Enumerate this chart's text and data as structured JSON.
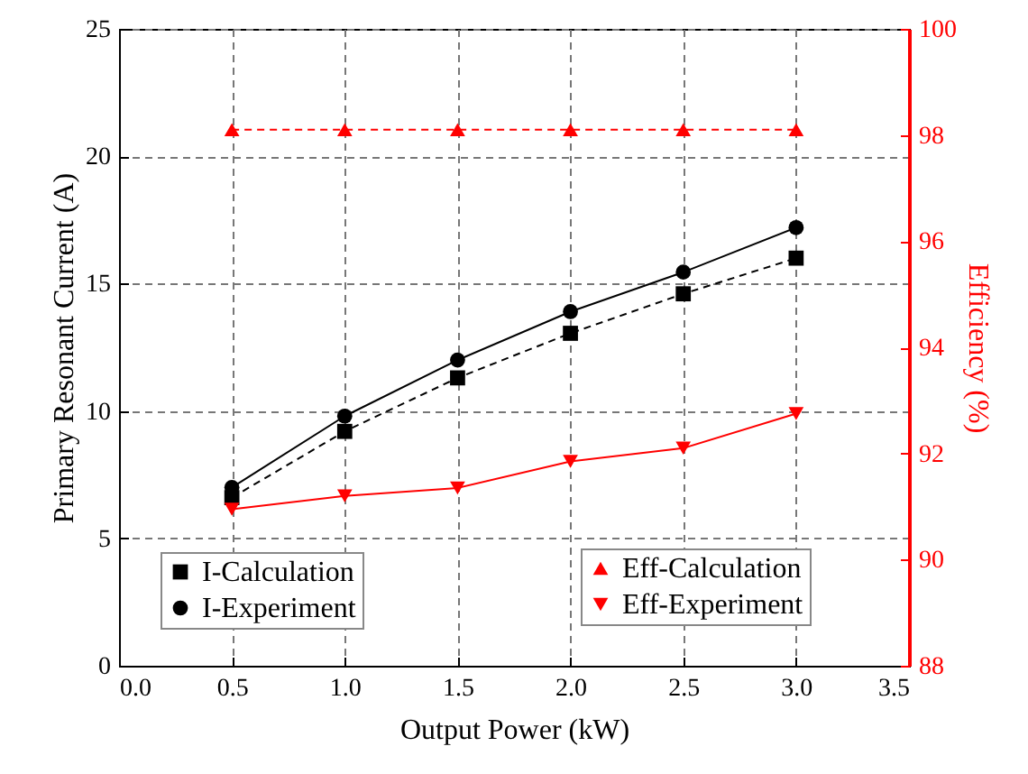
{
  "chart_data": {
    "type": "line",
    "xlabel": "Output Power (kW)",
    "ylabel": "Primary Resonant Current (A)",
    "y2label": "Efficiency (%)",
    "x": [
      0.5,
      1.0,
      1.5,
      2.0,
      2.5,
      3.0
    ],
    "xlim": [
      0,
      3.5
    ],
    "xticks": [
      {
        "value": 0,
        "label": "0.0"
      },
      0.5,
      {
        "value": 1,
        "label": "1.0"
      },
      1.5,
      {
        "value": 2,
        "label": "2.0"
      },
      2.5,
      {
        "value": 3,
        "label": "3.0"
      },
      3.5
    ],
    "ylim": [
      0,
      25
    ],
    "yticks": [
      0,
      5,
      10,
      15,
      20,
      25
    ],
    "y2lim": [
      88,
      100
    ],
    "y2ticks": [
      88,
      90,
      92,
      94,
      96,
      98,
      100
    ],
    "grid": true,
    "legend": "bottom",
    "series": [
      {
        "name": "I-Calculation",
        "color": "#000000",
        "marker": "square",
        "line_style": "dashed",
        "values": [
          6.6,
          9.2,
          11.3,
          13.05,
          14.6,
          16.0
        ]
      },
      {
        "name": "I-Experiment",
        "color": "#000000",
        "marker": "circle",
        "line_style": "solid",
        "values": [
          7.0,
          9.8,
          12.0,
          13.9,
          15.45,
          17.2
        ]
      },
      {
        "name": "Eff-Calculation",
        "color": "#ff0000",
        "marker": "triangle",
        "line_style": "dashed",
        "axis": "y2",
        "values": [
          98.1,
          98.1,
          98.1,
          98.1,
          98.1,
          98.1
        ]
      },
      {
        "name": "Eff-Experiment",
        "color": "#ff0000",
        "marker": "triangle-down",
        "line_style": "solid",
        "axis": "y2",
        "values": [
          90.95,
          91.2,
          91.35,
          91.85,
          92.1,
          92.75
        ]
      }
    ]
  }
}
